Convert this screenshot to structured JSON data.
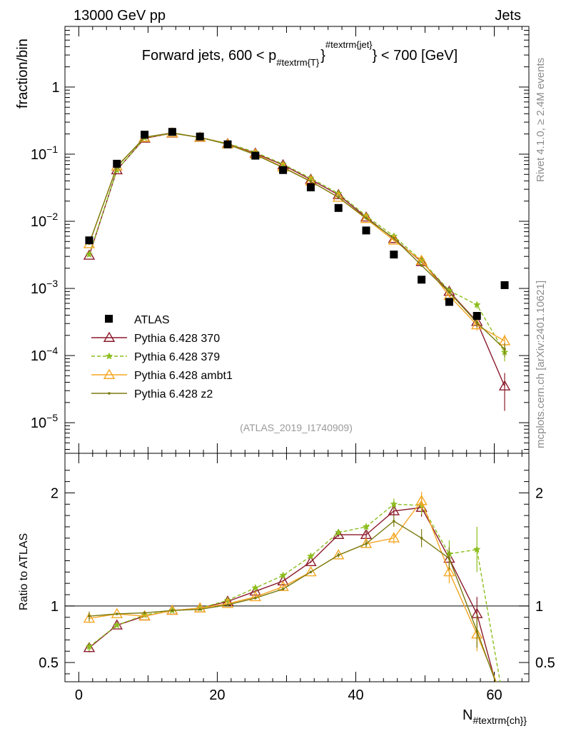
{
  "header": {
    "energy_label": "13000 GeV pp",
    "category_label": "Jets"
  },
  "side_labels": {
    "rivet": "Rivet 4.1.0, ≥ 2.4M events",
    "mcplots": "mcplots.cern.ch [arXiv:2401.10621]"
  },
  "chart_data": {
    "type": "line",
    "title": {
      "pre": "Forward jets, 600 < p",
      "sub": "#textrm{T}",
      "sup": "#textrm{jet}",
      "post": "} < 700 [GeV]"
    },
    "analysis_id": "(ATLAS_2019_I1740909)",
    "xlabel": {
      "main": "N",
      "sub": "#textrm{ch}"
    },
    "ylabel_top": "fraction/bin",
    "ylabel_bottom": "Ratio to ATLAS",
    "xlim": [
      -2,
      65
    ],
    "ylim_top": [
      3.5e-06,
      8
    ],
    "ylim_bottom": [
      0.33,
      2.35
    ],
    "log_y_top": true,
    "x_ticks": [
      0,
      20,
      40,
      60
    ],
    "y_ticks_top": [
      {
        "value": 1e-05,
        "mant": "10",
        "exp": "−5"
      },
      {
        "value": 0.0001,
        "mant": "10",
        "exp": "−4"
      },
      {
        "value": 0.001,
        "mant": "10",
        "exp": "−3"
      },
      {
        "value": 0.01,
        "mant": "10",
        "exp": "−2"
      },
      {
        "value": 0.1,
        "mant": "10",
        "exp": "−1"
      },
      {
        "value": 1,
        "mant": "1",
        "exp": ""
      }
    ],
    "y_ticks_bottom": [
      {
        "value": 0.5,
        "label": "0.5"
      },
      {
        "value": 1,
        "label": "1"
      },
      {
        "value": 2,
        "label": "2"
      }
    ],
    "x": [
      1.5,
      5.5,
      9.5,
      13.5,
      17.5,
      21.5,
      25.5,
      29.5,
      33.5,
      37.5,
      41.5,
      45.5,
      49.5,
      53.5,
      57.5,
      61.5
    ],
    "data": {
      "name": "ATLAS",
      "color": "#000000",
      "values": [
        0.0052,
        0.072,
        0.195,
        0.215,
        0.183,
        0.14,
        0.095,
        0.058,
        0.032,
        0.0158,
        0.0073,
        0.0032,
        0.00135,
        0.00063,
        0.00039,
        0.00112
      ]
    },
    "series": [
      {
        "name": "Pythia 6.428 370",
        "color": "#8b1a2b",
        "marker": "triangle",
        "dash": "",
        "values": [
          0.0031,
          0.058,
          0.172,
          0.205,
          0.177,
          0.143,
          0.103,
          0.069,
          0.042,
          0.0248,
          0.0115,
          0.0055,
          0.0025,
          0.0009,
          0.00032,
          3.5e-05
        ],
        "errors": [
          0.0001,
          0.001,
          0.003,
          0.003,
          0.003,
          0.002,
          0.002,
          0.001,
          0.001,
          0.0005,
          0.0003,
          0.0002,
          0.0001,
          5e-05,
          5e-05,
          2e-05
        ]
      },
      {
        "name": "Pythia 6.428 379",
        "color": "#8cbe1e",
        "marker": "star",
        "dash": "5,3",
        "values": [
          0.0032,
          0.058,
          0.175,
          0.205,
          0.177,
          0.145,
          0.107,
          0.071,
          0.044,
          0.026,
          0.0121,
          0.006,
          0.0026,
          0.00093,
          0.00057,
          0.000112
        ],
        "errors": [
          0.0001,
          0.001,
          0.003,
          0.003,
          0.003,
          0.002,
          0.002,
          0.001,
          0.001,
          0.0005,
          0.0003,
          0.0002,
          0.0001,
          5e-05,
          7e-05,
          3e-05
        ]
      },
      {
        "name": "Pythia 6.428 ambt1",
        "color": "#f5a623",
        "marker": "triangle",
        "dash": "",
        "values": [
          0.0046,
          0.066,
          0.177,
          0.207,
          0.178,
          0.141,
          0.1,
          0.064,
          0.0395,
          0.0226,
          0.0109,
          0.0052,
          0.0026,
          0.00078,
          0.000285,
          0.000165
        ],
        "errors": [
          0.0002,
          0.001,
          0.003,
          0.003,
          0.003,
          0.002,
          0.002,
          0.001,
          0.001,
          0.0005,
          0.0003,
          0.0002,
          0.0001,
          5e-05,
          5e-05,
          4e-05
        ]
      },
      {
        "name": "Pythia 6.428 z2",
        "color": "#7a7a10",
        "marker": "dot",
        "dash": "",
        "values": [
          0.0047,
          0.065,
          0.179,
          0.208,
          0.177,
          0.14,
          0.098,
          0.063,
          0.0392,
          0.0228,
          0.0111,
          0.0056,
          0.0022,
          0.00088,
          0.00031,
          0.000125
        ],
        "errors": [
          0.0002,
          0.001,
          0.003,
          0.003,
          0.003,
          0.002,
          0.002,
          0.001,
          0.001,
          0.0005,
          0.0003,
          0.0002,
          0.0001,
          5e-05,
          5e-05,
          3e-05
        ]
      }
    ],
    "ratio": {
      "reference": 1,
      "series": [
        {
          "values": [
            0.63,
            0.83,
            0.91,
            0.96,
            0.98,
            1.04,
            1.13,
            1.22,
            1.39,
            1.63,
            1.63,
            1.84,
            1.87,
            1.42,
            0.93,
            0.03
          ],
          "errors": [
            0.04,
            0.01,
            0.01,
            0.01,
            0.01,
            0.01,
            0.01,
            0.01,
            0.01,
            0.02,
            0.03,
            0.04,
            0.08,
            0.1,
            0.15,
            0.02
          ]
        },
        {
          "values": [
            0.64,
            0.83,
            0.92,
            0.96,
            0.98,
            1.05,
            1.16,
            1.27,
            1.44,
            1.65,
            1.7,
            1.9,
            1.89,
            1.46,
            1.5,
            0.1
          ],
          "errors": [
            0.04,
            0.01,
            0.01,
            0.01,
            0.01,
            0.01,
            0.01,
            0.01,
            0.01,
            0.02,
            0.03,
            0.05,
            0.08,
            0.12,
            0.2,
            0.03
          ]
        },
        {
          "values": [
            0.89,
            0.93,
            0.91,
            0.96,
            0.98,
            1.02,
            1.08,
            1.17,
            1.3,
            1.45,
            1.55,
            1.6,
            1.93,
            1.3,
            0.75,
            0.15
          ],
          "errors": [
            0.04,
            0.01,
            0.01,
            0.01,
            0.01,
            0.01,
            0.01,
            0.01,
            0.01,
            0.02,
            0.03,
            0.05,
            0.08,
            0.1,
            0.15,
            0.04
          ]
        },
        {
          "values": [
            0.91,
            0.93,
            0.94,
            0.96,
            0.97,
            1.01,
            1.07,
            1.15,
            1.3,
            1.45,
            1.55,
            1.75,
            1.6,
            1.42,
            0.78,
            0.11
          ],
          "errors": [
            0.04,
            0.01,
            0.01,
            0.01,
            0.01,
            0.01,
            0.01,
            0.01,
            0.01,
            0.02,
            0.03,
            0.05,
            0.08,
            0.1,
            0.15,
            0.03
          ]
        }
      ]
    },
    "legend_position": "lower-left"
  }
}
